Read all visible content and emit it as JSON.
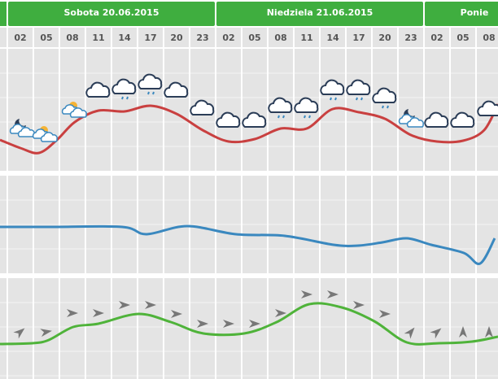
{
  "days": [
    "Sobota 20.06.2015",
    "Niedziela 21.06.2015",
    "Ponie"
  ],
  "hours": [
    "02",
    "05",
    "08",
    "11",
    "14",
    "17",
    "20",
    "23",
    "02",
    "05",
    "08",
    "11",
    "14",
    "17",
    "20",
    "23",
    "02",
    "05",
    "08"
  ]
}
